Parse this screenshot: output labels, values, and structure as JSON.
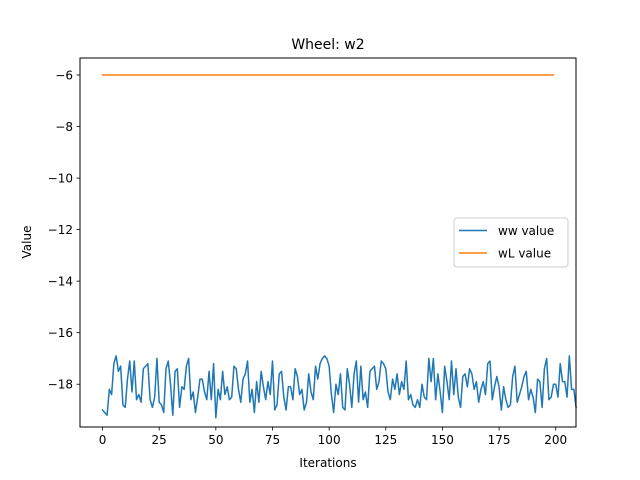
{
  "chart_data": {
    "type": "line",
    "title": "Wheel: w2",
    "xlabel": "Iterations",
    "ylabel": "Value",
    "xlim": [
      -9.95,
      208.95
    ],
    "ylim": [
      -19.66,
      -5.34
    ],
    "xticks": [
      0,
      25,
      50,
      75,
      100,
      125,
      150,
      175,
      200
    ],
    "yticks": [
      -18,
      -16,
      -14,
      -12,
      -10,
      -8,
      -6
    ],
    "ytick_labels": [
      "−18",
      "−16",
      "−14",
      "−12",
      "−10",
      "−8",
      "−6"
    ],
    "grid": false,
    "legend_position": "center-right",
    "series": [
      {
        "name": "ww value",
        "color": "#1f77b4",
        "x_start": 0,
        "x_step": 1,
        "values": [
          -19.0,
          -19.1,
          -19.2,
          -18.2,
          -18.4,
          -17.2,
          -16.9,
          -17.5,
          -17.3,
          -18.8,
          -18.9,
          -17.8,
          -17.1,
          -18.3,
          -17.1,
          -18.6,
          -18.4,
          -18.7,
          -17.4,
          -17.3,
          -17.2,
          -18.6,
          -18.9,
          -18.5,
          -17.0,
          -18.7,
          -18.8,
          -19.1,
          -17.4,
          -17.1,
          -18.0,
          -19.2,
          -17.5,
          -17.4,
          -18.9,
          -18.1,
          -18.2,
          -17.3,
          -17.0,
          -18.6,
          -18.3,
          -19.1,
          -18.5,
          -17.8,
          -17.8,
          -18.3,
          -18.6,
          -17.5,
          -18.6,
          -17.2,
          -19.3,
          -18.2,
          -18.6,
          -17.5,
          -18.4,
          -18.1,
          -18.6,
          -18.5,
          -17.3,
          -17.4,
          -18.2,
          -18.7,
          -17.8,
          -17.6,
          -17.1,
          -18.7,
          -18.2,
          -19.1,
          -17.9,
          -18.7,
          -17.5,
          -18.1,
          -18.6,
          -17.9,
          -18.4,
          -17.1,
          -19.0,
          -18.8,
          -17.6,
          -17.5,
          -18.5,
          -19.0,
          -18.1,
          -18.1,
          -18.6,
          -17.4,
          -17.7,
          -18.4,
          -18.2,
          -19.0,
          -18.7,
          -17.6,
          -18.3,
          -18.6,
          -17.3,
          -17.8,
          -17.2,
          -17.0,
          -16.9,
          -17.0,
          -17.3,
          -18.4,
          -19.1,
          -18.0,
          -18.4,
          -17.6,
          -18.9,
          -19.0,
          -17.4,
          -18.0,
          -18.9,
          -17.6,
          -17.1,
          -18.7,
          -17.3,
          -18.6,
          -18.3,
          -18.9,
          -17.5,
          -17.4,
          -17.3,
          -18.2,
          -17.9,
          -17.1,
          -17.2,
          -17.4,
          -18.3,
          -18.6,
          -17.8,
          -18.2,
          -17.6,
          -18.4,
          -17.9,
          -18.2,
          -17.1,
          -18.6,
          -18.4,
          -18.8,
          -18.9,
          -18.6,
          -18.9,
          -18.0,
          -18.5,
          -18.6,
          -17.0,
          -17.9,
          -17.0,
          -18.6,
          -17.6,
          -18.3,
          -19.1,
          -17.3,
          -17.9,
          -18.6,
          -17.1,
          -18.4,
          -17.4,
          -18.5,
          -18.9,
          -17.7,
          -17.6,
          -18.1,
          -17.4,
          -17.6,
          -18.2,
          -17.9,
          -18.7,
          -18.2,
          -17.9,
          -18.4,
          -17.2,
          -17.1,
          -18.6,
          -18.1,
          -17.7,
          -18.1,
          -19.0,
          -18.1,
          -18.6,
          -18.9,
          -18.8,
          -17.7,
          -17.3,
          -18.7,
          -18.4,
          -18.1,
          -17.7,
          -17.5,
          -18.6,
          -18.2,
          -18.5,
          -19.1,
          -17.8,
          -17.9,
          -18.9,
          -17.4,
          -17.0,
          -18.6,
          -18.5,
          -18.0,
          -18.0,
          -18.5,
          -17.2,
          -17.9,
          -17.9,
          -18.5,
          -16.9,
          -18.2,
          -18.2,
          -18.9
        ]
      },
      {
        "name": "wL value",
        "color": "#ff7f0e",
        "x": [
          0,
          199
        ],
        "values": [
          -6.0,
          -6.0
        ]
      }
    ]
  }
}
